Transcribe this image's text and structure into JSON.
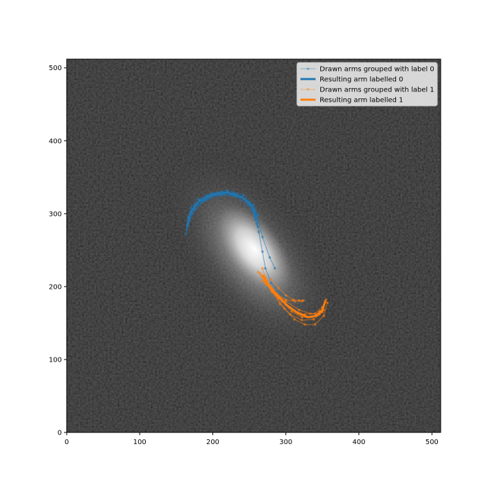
{
  "chart_data": {
    "type": "line",
    "title": "",
    "xlabel": "",
    "ylabel": "",
    "xlim": [
      0,
      512
    ],
    "ylim": [
      0,
      512
    ],
    "x_ticks": [
      0,
      100,
      200,
      300,
      400,
      500
    ],
    "y_ticks": [
      0,
      100,
      200,
      300,
      400,
      500
    ],
    "background": "grayscale galaxy image",
    "grid": false,
    "legend_position": "top-right",
    "colors": {
      "label0": "#1f77b4",
      "label1": "#ff7f0e"
    },
    "legend": [
      {
        "label": "Drawn arms grouped with label 0",
        "style": "thin-marker",
        "color": "#1f77b4"
      },
      {
        "label": "Resulting arm labelled 0",
        "style": "thick",
        "color": "#1f77b4"
      },
      {
        "label": "Drawn arms grouped with label 1",
        "style": "thin-marker",
        "color": "#ff7f0e"
      },
      {
        "label": "Resulting arm labelled 1",
        "style": "thick",
        "color": "#ff7f0e"
      }
    ],
    "series": [
      {
        "name": "Drawn arms grouped with label 0",
        "color": "#1f77b4",
        "lines": [
          [
            [
              163,
              272
            ],
            [
              166,
              295
            ],
            [
              175,
              312
            ],
            [
              192,
              325
            ],
            [
              212,
              330
            ],
            [
              232,
              327
            ],
            [
              250,
              316
            ],
            [
              260,
              298
            ],
            [
              262,
              282
            ]
          ],
          [
            [
              166,
              283
            ],
            [
              170,
              302
            ],
            [
              182,
              318
            ],
            [
              200,
              327
            ],
            [
              220,
              330
            ],
            [
              240,
              323
            ],
            [
              254,
              310
            ],
            [
              258,
              292
            ]
          ],
          [
            [
              164,
              278
            ],
            [
              170,
              300
            ],
            [
              186,
              318
            ],
            [
              208,
              328
            ],
            [
              228,
              328
            ],
            [
              246,
              318
            ],
            [
              256,
              303
            ],
            [
              260,
              286
            ],
            [
              263,
              275
            ],
            [
              268,
              248
            ],
            [
              272,
              225
            ],
            [
              280,
              205
            ],
            [
              292,
              192
            ],
            [
              300,
              186
            ]
          ],
          [
            [
              168,
              290
            ],
            [
              176,
              306
            ],
            [
              190,
              318
            ],
            [
              210,
              325
            ],
            [
              230,
              324
            ],
            [
              248,
              312
            ],
            [
              258,
              296
            ]
          ],
          [
            [
              172,
              300
            ],
            [
              185,
              316
            ],
            [
              205,
              326
            ],
            [
              225,
              326
            ],
            [
              245,
              318
            ],
            [
              258,
              305
            ],
            [
              262,
              290
            ],
            [
              268,
              268
            ],
            [
              278,
              240
            ],
            [
              285,
              225
            ]
          ],
          [
            [
              170,
              308
            ],
            [
              180,
              320
            ],
            [
              198,
              328
            ],
            [
              220,
              332
            ],
            [
              242,
              326
            ],
            [
              256,
              312
            ],
            [
              262,
              298
            ]
          ]
        ]
      },
      {
        "name": "Resulting arm labelled 0",
        "color": "#1f77b4",
        "lines": [
          [
            [
              165,
              283
            ],
            [
              170,
              303
            ],
            [
              182,
              318
            ],
            [
              200,
              326
            ],
            [
              220,
              329
            ],
            [
              240,
              323
            ],
            [
              254,
              310
            ],
            [
              259,
              293
            ]
          ]
        ]
      },
      {
        "name": "Drawn arms grouped with label 1",
        "color": "#ff7f0e",
        "lines": [
          [
            [
              268,
              225
            ],
            [
              274,
              208
            ],
            [
              282,
              192
            ],
            [
              292,
              176
            ],
            [
              306,
              162
            ],
            [
              322,
              154
            ],
            [
              338,
              155
            ],
            [
              350,
              165
            ],
            [
              355,
              182
            ]
          ],
          [
            [
              265,
              218
            ],
            [
              272,
              205
            ],
            [
              280,
              194
            ],
            [
              290,
              184
            ],
            [
              300,
              175
            ],
            [
              312,
              167
            ],
            [
              326,
              162
            ],
            [
              340,
              163
            ],
            [
              350,
              172
            ]
          ],
          [
            [
              270,
              215
            ],
            [
              278,
              202
            ],
            [
              288,
              190
            ],
            [
              300,
              182
            ],
            [
              312,
              180
            ],
            [
              322,
              180
            ]
          ],
          [
            [
              272,
              212
            ],
            [
              282,
              196
            ],
            [
              295,
              180
            ],
            [
              308,
              166
            ],
            [
              322,
              158
            ],
            [
              336,
              158
            ],
            [
              346,
              166
            ]
          ],
          [
            [
              280,
              210
            ],
            [
              290,
              198
            ],
            [
              300,
              188
            ],
            [
              310,
              182
            ],
            [
              318,
              181
            ],
            [
              324,
              181
            ]
          ],
          [
            [
              262,
              220
            ],
            [
              274,
              204
            ],
            [
              286,
              188
            ],
            [
              298,
              170
            ],
            [
              312,
              155
            ],
            [
              326,
              148
            ],
            [
              340,
              148
            ],
            [
              352,
              160
            ],
            [
              357,
              178
            ]
          ],
          [
            [
              268,
              208
            ],
            [
              282,
              194
            ],
            [
              300,
              180
            ],
            [
              318,
              168
            ],
            [
              334,
              163
            ],
            [
              346,
              162
            ],
            [
              352,
              168
            ]
          ]
        ]
      },
      {
        "name": "Resulting arm labelled 1",
        "color": "#ff7f0e",
        "lines": [
          [
            [
              268,
              215
            ],
            [
              278,
              200
            ],
            [
              290,
              186
            ],
            [
              302,
              174
            ],
            [
              316,
              164
            ],
            [
              330,
              158
            ],
            [
              342,
              160
            ],
            [
              350,
              168
            ],
            [
              354,
              180
            ]
          ]
        ]
      }
    ]
  }
}
